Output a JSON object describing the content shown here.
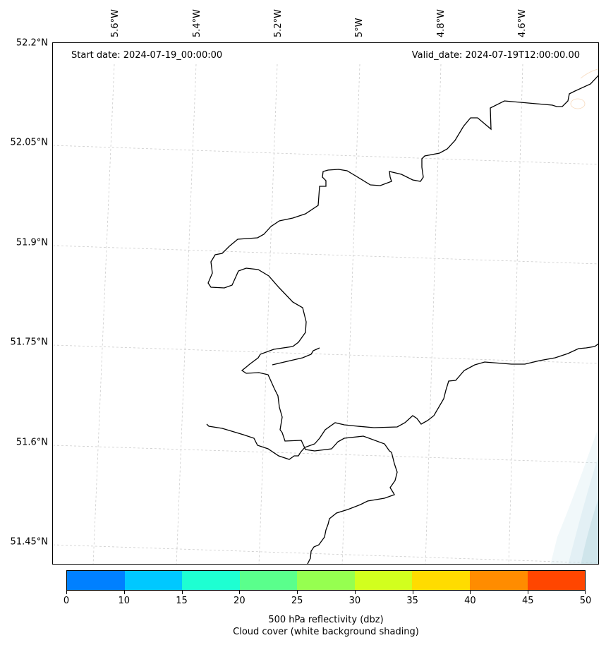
{
  "map": {
    "start_date": "Start date: 2024-07-19_00:00:00",
    "valid_date": "Valid_date: 2024-07-19T12:00:00.00",
    "lat_labels": [
      "52.2°N",
      "52.05°N",
      "51.9°N",
      "51.75°N",
      "51.6°N",
      "51.45°N"
    ],
    "lon_labels": [
      "5.6°W",
      "5.4°W",
      "5.2°W",
      "5°W",
      "4.8°W",
      "4.6°W"
    ],
    "coastline_color": "#000000",
    "gridline_color": "#cccccc",
    "cloud_shading_color": "#c9e3ea"
  },
  "colorbar": {
    "colors": [
      "#0080ff",
      "#00c8ff",
      "#1effd2",
      "#5aff8c",
      "#96ff50",
      "#d2ff1e",
      "#ffdc00",
      "#ff8c00",
      "#ff4600"
    ],
    "ticks": [
      "0",
      "10",
      "15",
      "20",
      "25",
      "30",
      "35",
      "40",
      "45",
      "50"
    ],
    "caption_line1": "500 hPa reflectivity (dbz)",
    "caption_line2": "Cloud cover (white background shading)"
  }
}
